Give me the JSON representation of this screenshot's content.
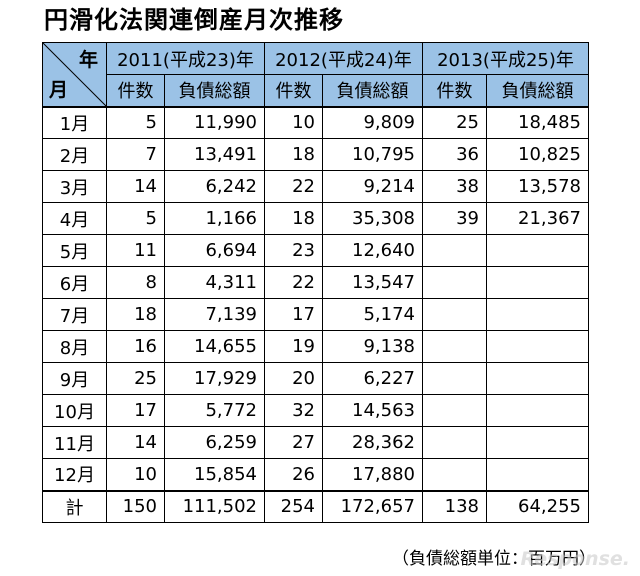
{
  "title": "円滑化法関連倒産月次推移",
  "corner": {
    "year": "年",
    "month": "月"
  },
  "years": [
    "2011(平成23)年",
    "2012(平成24)年",
    "2013(平成25)年"
  ],
  "subheaders": {
    "count": "件数",
    "debt": "負債総額"
  },
  "rows": [
    {
      "month": "1月",
      "c2011": "5",
      "d2011": "11,990",
      "c2012": "10",
      "d2012": "9,809",
      "c2013": "25",
      "d2013": "18,485"
    },
    {
      "month": "2月",
      "c2011": "7",
      "d2011": "13,491",
      "c2012": "18",
      "d2012": "10,795",
      "c2013": "36",
      "d2013": "10,825"
    },
    {
      "month": "3月",
      "c2011": "14",
      "d2011": "6,242",
      "c2012": "22",
      "d2012": "9,214",
      "c2013": "38",
      "d2013": "13,578"
    },
    {
      "month": "4月",
      "c2011": "5",
      "d2011": "1,166",
      "c2012": "18",
      "d2012": "35,308",
      "c2013": "39",
      "d2013": "21,367"
    },
    {
      "month": "5月",
      "c2011": "11",
      "d2011": "6,694",
      "c2012": "23",
      "d2012": "12,640",
      "c2013": "",
      "d2013": ""
    },
    {
      "month": "6月",
      "c2011": "8",
      "d2011": "4,311",
      "c2012": "22",
      "d2012": "13,547",
      "c2013": "",
      "d2013": ""
    },
    {
      "month": "7月",
      "c2011": "18",
      "d2011": "7,139",
      "c2012": "17",
      "d2012": "5,174",
      "c2013": "",
      "d2013": ""
    },
    {
      "month": "8月",
      "c2011": "16",
      "d2011": "14,655",
      "c2012": "19",
      "d2012": "9,138",
      "c2013": "",
      "d2013": ""
    },
    {
      "month": "9月",
      "c2011": "25",
      "d2011": "17,929",
      "c2012": "20",
      "d2012": "6,227",
      "c2013": "",
      "d2013": ""
    },
    {
      "month": "10月",
      "c2011": "17",
      "d2011": "5,772",
      "c2012": "32",
      "d2012": "14,563",
      "c2013": "",
      "d2013": ""
    },
    {
      "month": "11月",
      "c2011": "14",
      "d2011": "6,259",
      "c2012": "27",
      "d2012": "28,362",
      "c2013": "",
      "d2013": ""
    },
    {
      "month": "12月",
      "c2011": "10",
      "d2011": "15,854",
      "c2012": "26",
      "d2012": "17,880",
      "c2013": "",
      "d2013": ""
    }
  ],
  "total": {
    "label": "計",
    "c2011": "150",
    "d2011": "111,502",
    "c2012": "254",
    "d2012": "172,657",
    "c2013": "138",
    "d2013": "64,255"
  },
  "note": "（負債総額単位：百万円）",
  "watermark": "Response.",
  "colors": {
    "header_bg": "#9bc2e6",
    "border": "#000000"
  }
}
